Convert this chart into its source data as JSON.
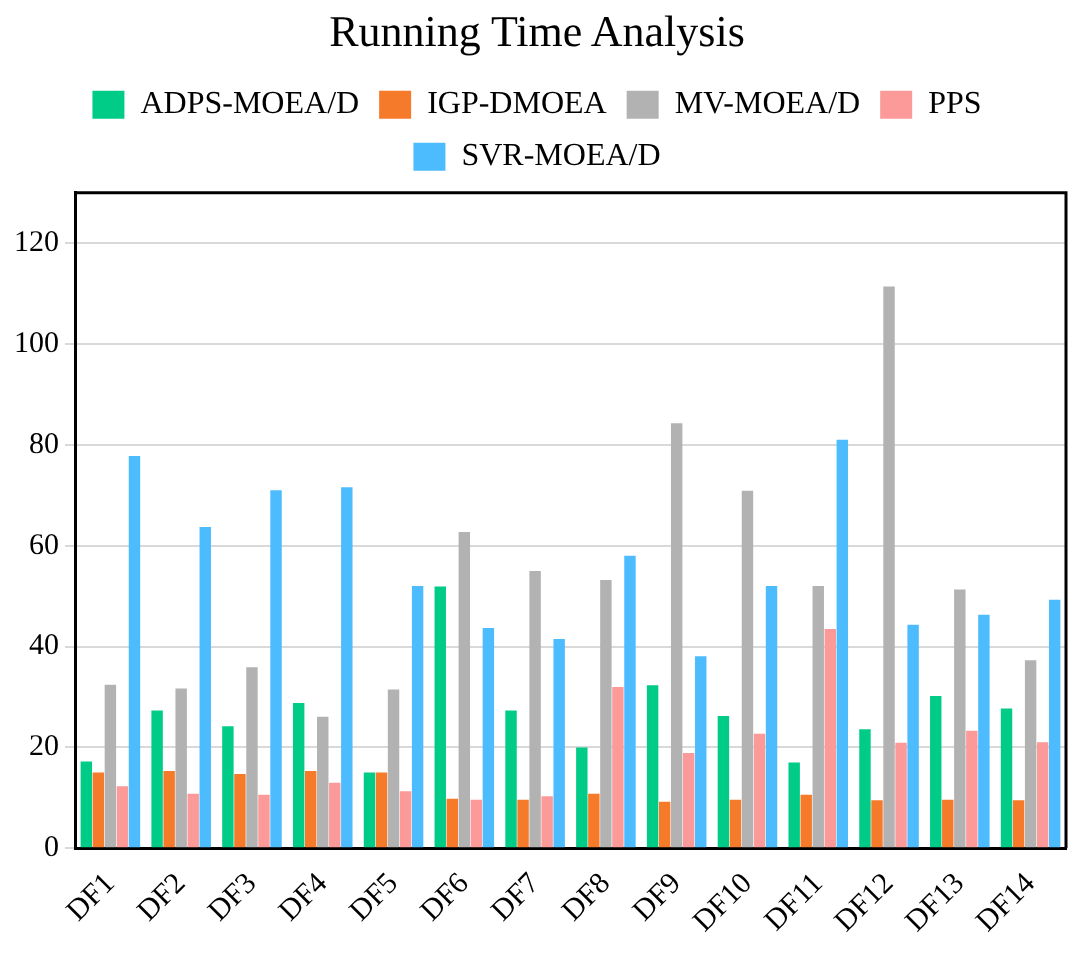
{
  "chart_data": {
    "type": "bar",
    "title": "Running Time Analysis",
    "categories": [
      "DF1",
      "DF2",
      "DF3",
      "DF4",
      "DF5",
      "DF6",
      "DF7",
      "DF8",
      "DF9",
      "DF10",
      "DF11",
      "DF12",
      "DF13",
      "DF14"
    ],
    "series": [
      {
        "name": "ADPS-MOEA/D",
        "color": "#00cc88",
        "values": [
          17.2,
          27.3,
          24.2,
          28.8,
          15,
          51.9,
          27.3,
          20,
          32.3,
          26.2,
          17,
          23.6,
          30.2,
          27.7
        ]
      },
      {
        "name": "IGP-DMOEA",
        "color": "#f57a2a",
        "values": [
          15,
          15.3,
          14.7,
          15.3,
          15,
          9.8,
          9.6,
          10.8,
          9.2,
          9.6,
          10.6,
          9.5,
          9.6,
          9.5
        ]
      },
      {
        "name": "MV-MOEA/D",
        "color": "#b2b2b2",
        "values": [
          32.4,
          31.7,
          35.9,
          26.1,
          31.5,
          62.7,
          55,
          53.2,
          84.3,
          70.9,
          52,
          111.4,
          51.3,
          37.3
        ]
      },
      {
        "name": "PPS",
        "color": "#fb9a99",
        "values": [
          12.3,
          10.8,
          10.6,
          13,
          11.3,
          9.6,
          10.3,
          32,
          18.9,
          22.7,
          43.5,
          20.9,
          23.3,
          21
        ]
      },
      {
        "name": "SVR-MOEA/D",
        "color": "#4dbcff",
        "values": [
          77.8,
          63.7,
          71,
          71.6,
          52,
          43.7,
          41.5,
          58,
          38.1,
          52,
          81,
          44.3,
          46.3,
          49.3
        ]
      }
    ],
    "ylim": [
      0,
      130
    ],
    "yticks": [
      0,
      20,
      40,
      60,
      80,
      100,
      120
    ],
    "grid": "y",
    "legend": "top"
  }
}
